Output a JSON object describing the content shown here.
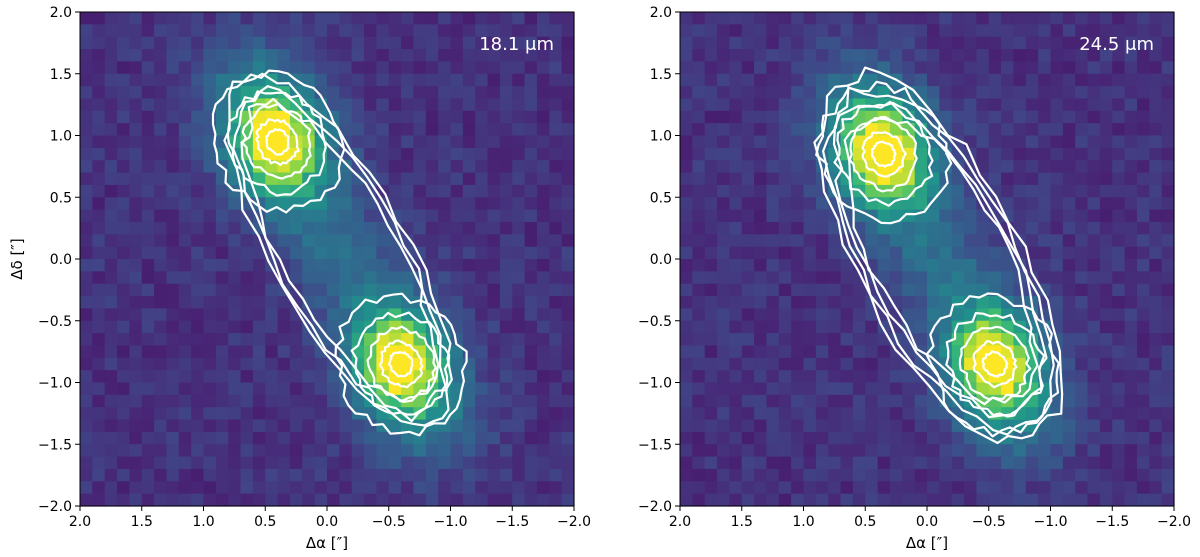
{
  "chart_data": [
    {
      "type": "heatmap",
      "annotation": "18.1 μm",
      "xlabel": "Δα [″]",
      "ylabel": "Δδ [″]",
      "xlim": [
        2.0,
        -2.0
      ],
      "ylim": [
        -2.0,
        2.0
      ],
      "xticks": [
        "2.0",
        "1.5",
        "1.0",
        "0.5",
        "0.0",
        "−0.5",
        "−1.0",
        "−1.5",
        "−2.0"
      ],
      "yticks": [
        "2.0",
        "1.5",
        "1.0",
        "0.5",
        "0.0",
        "−0.5",
        "−1.0",
        "−1.5",
        "−2.0"
      ],
      "colormap": "viridis",
      "contours": true,
      "contour_color": "#ffffff",
      "peaks": [
        {
          "x": 0.4,
          "y": 0.95
        },
        {
          "x": -0.6,
          "y": -0.85
        }
      ]
    },
    {
      "type": "heatmap",
      "annotation": "24.5 μm",
      "xlabel": "Δα [″]",
      "ylabel": "",
      "xlim": [
        2.0,
        -2.0
      ],
      "ylim": [
        -2.0,
        2.0
      ],
      "xticks": [
        "2.0",
        "1.5",
        "1.0",
        "0.5",
        "0.0",
        "−0.5",
        "−1.0",
        "−1.5",
        "−2.0"
      ],
      "yticks": [
        "2.0",
        "1.5",
        "1.0",
        "0.5",
        "0.0",
        "−0.5",
        "−1.0",
        "−1.5",
        "−2.0"
      ],
      "colormap": "viridis",
      "contours": true,
      "contour_color": "#ffffff",
      "peaks": [
        {
          "x": 0.35,
          "y": 0.85
        },
        {
          "x": -0.55,
          "y": -0.85
        }
      ]
    }
  ]
}
